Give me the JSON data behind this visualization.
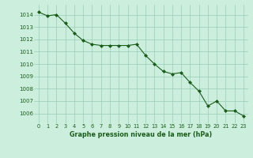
{
  "x": [
    0,
    1,
    2,
    3,
    4,
    5,
    6,
    7,
    8,
    9,
    10,
    11,
    12,
    13,
    14,
    15,
    16,
    17,
    18,
    19,
    20,
    21,
    22,
    23
  ],
  "y": [
    1014.2,
    1013.9,
    1014.0,
    1013.3,
    1012.5,
    1011.9,
    1011.6,
    1011.5,
    1011.5,
    1011.5,
    1011.5,
    1011.6,
    1010.7,
    1010.0,
    1009.4,
    1009.2,
    1009.3,
    1008.5,
    1007.8,
    1006.6,
    1007.0,
    1006.2,
    1006.2,
    1005.8
  ],
  "line_color": "#1a5c1a",
  "marker_color": "#1a5c1a",
  "bg_color": "#cceedd",
  "grid_color": "#99ccbb",
  "xlabel": "Graphe pression niveau de la mer (hPa)",
  "xlabel_color": "#1a5c1a",
  "tick_color": "#1a5c1a",
  "ylim": [
    1005.2,
    1014.8
  ],
  "xlim": [
    -0.5,
    23.5
  ],
  "yticks": [
    1006,
    1007,
    1008,
    1009,
    1010,
    1011,
    1012,
    1013,
    1014
  ],
  "xticks": [
    0,
    1,
    2,
    3,
    4,
    5,
    6,
    7,
    8,
    9,
    10,
    11,
    12,
    13,
    14,
    15,
    16,
    17,
    18,
    19,
    20,
    21,
    22,
    23
  ]
}
